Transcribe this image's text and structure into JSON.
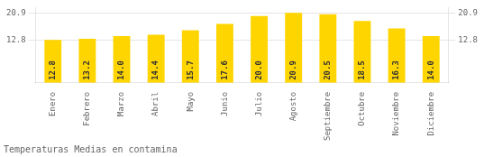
{
  "chart_data": {
    "type": "bar",
    "title": "Temperaturas Medias en contamina",
    "categories": [
      "Enero",
      "Febrero",
      "Marzo",
      "Abril",
      "Mayo",
      "Junio",
      "Julio",
      "Agosto",
      "Septiembre",
      "Octubre",
      "Noviembre",
      "Diciembre"
    ],
    "values": [
      12.8,
      13.2,
      14.0,
      14.4,
      15.7,
      17.6,
      20.0,
      20.9,
      20.5,
      18.5,
      16.3,
      14.0
    ],
    "value_labels": [
      "12.8",
      "13.2",
      "14.0",
      "14.4",
      "15.7",
      "17.6",
      "20.0",
      "20.9",
      "20.5",
      "18.5",
      "16.3",
      "14.0"
    ],
    "color": "#FFD500",
    "ylim": [
      0.0,
      22.5
    ],
    "yticks": [
      12.8,
      20.9
    ],
    "grid": true,
    "data_labels": true
  }
}
